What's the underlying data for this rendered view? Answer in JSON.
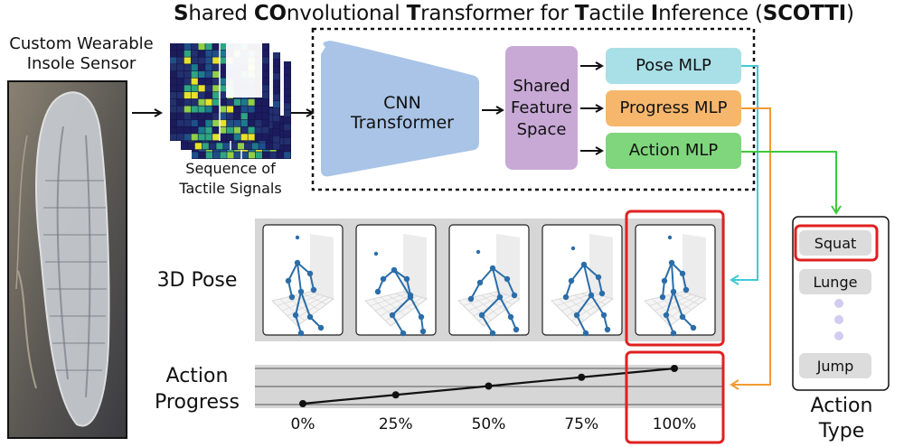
{
  "title": {
    "parts": [
      {
        "text": "S",
        "bold": true
      },
      {
        "text": "hared ",
        "bold": false
      },
      {
        "text": "CO",
        "bold": true
      },
      {
        "text": "nvolutional ",
        "bold": false
      },
      {
        "text": "T",
        "bold": true
      },
      {
        "text": "ransformer for ",
        "bold": false
      },
      {
        "text": "T",
        "bold": true
      },
      {
        "text": "actile ",
        "bold": false
      },
      {
        "text": "I",
        "bold": true
      },
      {
        "text": "nference (",
        "bold": false
      },
      {
        "text": "SCOTTI",
        "bold": true
      },
      {
        "text": ")",
        "bold": false
      }
    ]
  },
  "sensor": {
    "label_line1": "Custom Wearable",
    "label_line2": "Insole Sensor"
  },
  "signals": {
    "label_line1": "Sequence of",
    "label_line2": "Tactile Signals"
  },
  "encoder": {
    "line1": "CNN",
    "line2": "Transformer"
  },
  "feature": {
    "line1": "Shared",
    "line2": "Feature",
    "line3": "Space"
  },
  "heads": {
    "pose": "Pose MLP",
    "progress": "Progress MLP",
    "action": "Action MLP"
  },
  "pose_section": {
    "label": "3D Pose",
    "frame_count": 5
  },
  "progress_section": {
    "label_line1": "Action",
    "label_line2": "Progress",
    "ticks": [
      "0%",
      "25%",
      "50%",
      "75%",
      "100%"
    ]
  },
  "action_type": {
    "items": [
      "Squat",
      "Lunge",
      "Jump"
    ],
    "selected": "Squat",
    "label_line1": "Action",
    "label_line2": "Type"
  },
  "colors": {
    "pose": "#a9dfe6",
    "pose_arrow": "#3fcad6",
    "progress": "#f6b76d",
    "progress_arrow": "#f29b33",
    "action": "#7fd67c",
    "action_arrow": "#3fc93a",
    "encoder": "#a9c4e6",
    "feature": "#c8a9d6",
    "highlight": "#e02020",
    "skeleton": "#2b6da8"
  },
  "chart_data": {
    "type": "line",
    "x": [
      0,
      25,
      50,
      75,
      100
    ],
    "y": [
      0,
      25,
      50,
      75,
      100
    ],
    "xlabel": "",
    "ylabel": "",
    "x_tick_labels": [
      "0%",
      "25%",
      "50%",
      "75%",
      "100%"
    ]
  }
}
